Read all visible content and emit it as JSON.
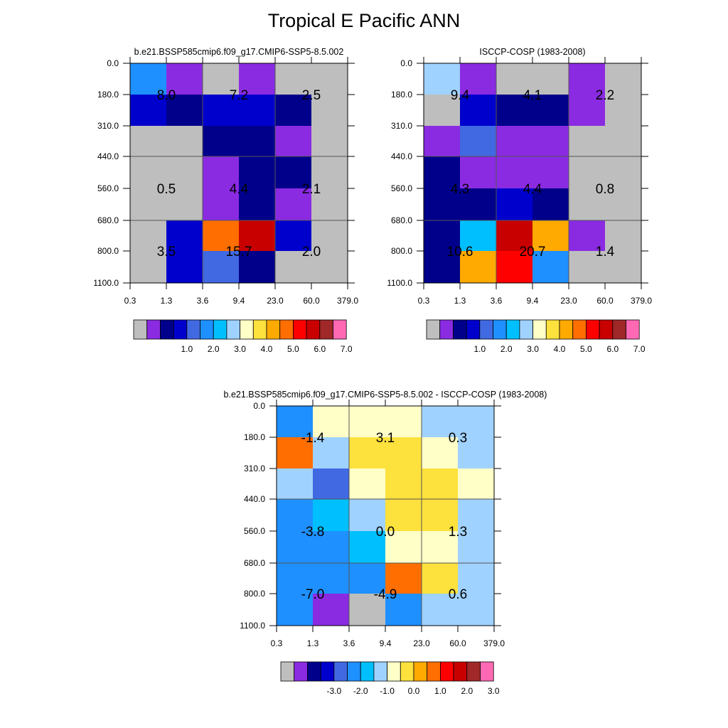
{
  "title": "Tropical E Pacific ANN",
  "palette": {
    "colors": [
      "#bebebe",
      "#8a2be2",
      "#00008b",
      "#0000cd",
      "#4169e1",
      "#1e90ff",
      "#00bfff",
      "#a0d2ff",
      "#ffffc8",
      "#fde13c",
      "#ffaa00",
      "#ff6e00",
      "#ff0000",
      "#c80000",
      "#a02828",
      "#ff69b4"
    ],
    "grid_color": "#555555"
  },
  "chart_data": [
    {
      "type": "heatmap",
      "title": "b.e21.BSSP585cmip6.f09_g17.CMIP6-SSP5-8.5.002",
      "x_ticks": [
        "0.3",
        "1.3",
        "3.6",
        "9.4",
        "23.0",
        "60.0",
        "379.0"
      ],
      "y_ticks": [
        "0.0",
        "180.0",
        "310.0",
        "440.0",
        "560.0",
        "680.0",
        "800.0",
        "1100.0"
      ],
      "color_index_grid": [
        [
          5,
          1,
          0,
          1,
          0,
          0
        ],
        [
          3,
          2,
          3,
          3,
          2,
          0
        ],
        [
          0,
          0,
          2,
          2,
          1,
          0
        ],
        [
          0,
          0,
          1,
          2,
          2,
          0
        ],
        [
          0,
          0,
          1,
          2,
          1,
          0
        ],
        [
          0,
          3,
          11,
          13,
          3,
          0
        ],
        [
          0,
          3,
          4,
          2,
          0,
          0
        ]
      ],
      "box_labels": [
        {
          "col": 0,
          "row": 0,
          "text": "8.0"
        },
        {
          "col": 1,
          "row": 0,
          "text": "7.2"
        },
        {
          "col": 2,
          "row": 0,
          "text": "2.5"
        },
        {
          "col": 0,
          "row": 1,
          "text": "0.5"
        },
        {
          "col": 1,
          "row": 1,
          "text": "4.4"
        },
        {
          "col": 2,
          "row": 1,
          "text": "2.1"
        },
        {
          "col": 0,
          "row": 2,
          "text": "3.5"
        },
        {
          "col": 1,
          "row": 2,
          "text": "15.7"
        },
        {
          "col": 2,
          "row": 2,
          "text": "2.0"
        }
      ],
      "colorbar_labels": [
        "1.0",
        "2.0",
        "3.0",
        "4.0",
        "5.0",
        "6.0",
        "7.0"
      ]
    },
    {
      "type": "heatmap",
      "title": "ISCCP-COSP (1983-2008)",
      "x_ticks": [
        "0.3",
        "1.3",
        "3.6",
        "9.4",
        "23.0",
        "60.0",
        "379.0"
      ],
      "y_ticks": [
        "0.0",
        "180.0",
        "310.0",
        "440.0",
        "560.0",
        "680.0",
        "800.0",
        "1100.0"
      ],
      "color_index_grid": [
        [
          7,
          1,
          0,
          0,
          1,
          0
        ],
        [
          0,
          3,
          2,
          2,
          1,
          0
        ],
        [
          1,
          4,
          1,
          1,
          0,
          0
        ],
        [
          2,
          1,
          1,
          1,
          0,
          0
        ],
        [
          2,
          2,
          3,
          2,
          0,
          0
        ],
        [
          2,
          6,
          13,
          10,
          1,
          0
        ],
        [
          2,
          10,
          12,
          5,
          0,
          0
        ]
      ],
      "box_labels": [
        {
          "col": 0,
          "row": 0,
          "text": "9.4"
        },
        {
          "col": 1,
          "row": 0,
          "text": "4.1"
        },
        {
          "col": 2,
          "row": 0,
          "text": "2.2"
        },
        {
          "col": 0,
          "row": 1,
          "text": "4.3"
        },
        {
          "col": 1,
          "row": 1,
          "text": "4.4"
        },
        {
          "col": 2,
          "row": 1,
          "text": "0.8"
        },
        {
          "col": 0,
          "row": 2,
          "text": "10.6"
        },
        {
          "col": 1,
          "row": 2,
          "text": "20.7"
        },
        {
          "col": 2,
          "row": 2,
          "text": "1.4"
        }
      ],
      "colorbar_labels": [
        "1.0",
        "2.0",
        "3.0",
        "4.0",
        "5.0",
        "6.0",
        "7.0"
      ]
    },
    {
      "type": "heatmap",
      "title": "b.e21.BSSP585cmip6.f09_g17.CMIP6-SSP5-8.5.002 - ISCCP-COSP (1983-2008)",
      "x_ticks": [
        "0.3",
        "1.3",
        "3.6",
        "9.4",
        "23.0",
        "60.0",
        "379.0"
      ],
      "y_ticks": [
        "0.0",
        "180.0",
        "310.0",
        "440.0",
        "560.0",
        "680.0",
        "800.0",
        "1100.0"
      ],
      "color_index_grid": [
        [
          5,
          8,
          8,
          8,
          7,
          7
        ],
        [
          11,
          7,
          9,
          9,
          8,
          7
        ],
        [
          7,
          4,
          8,
          9,
          9,
          8
        ],
        [
          5,
          6,
          7,
          9,
          9,
          7
        ],
        [
          5,
          5,
          6,
          8,
          8,
          7
        ],
        [
          5,
          5,
          5,
          11,
          9,
          7
        ],
        [
          5,
          1,
          0,
          5,
          7,
          7
        ]
      ],
      "box_labels": [
        {
          "col": 0,
          "row": 0,
          "text": "-1.4"
        },
        {
          "col": 1,
          "row": 0,
          "text": "3.1"
        },
        {
          "col": 2,
          "row": 0,
          "text": "0.3"
        },
        {
          "col": 0,
          "row": 1,
          "text": "-3.8"
        },
        {
          "col": 1,
          "row": 1,
          "text": "0.0"
        },
        {
          "col": 2,
          "row": 1,
          "text": "1.3"
        },
        {
          "col": 0,
          "row": 2,
          "text": "-7.0"
        },
        {
          "col": 1,
          "row": 2,
          "text": "-4.9"
        },
        {
          "col": 2,
          "row": 2,
          "text": "0.6"
        }
      ],
      "colorbar_labels": [
        "-3.0",
        "-2.0",
        "-1.0",
        "0.0",
        "1.0",
        "2.0",
        "3.0"
      ]
    }
  ]
}
